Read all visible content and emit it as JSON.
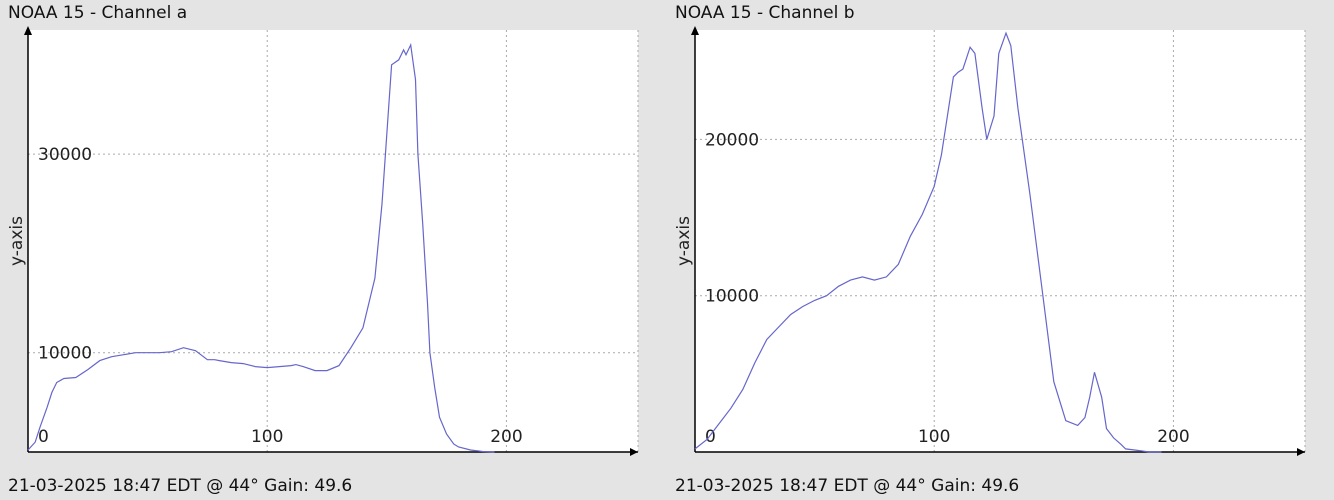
{
  "colors": {
    "background": "#e4e4e4",
    "plot_bg": "#ffffff",
    "line": "#6666cc",
    "grid": "#aaaaaa",
    "axis": "#000000"
  },
  "charts": [
    {
      "title": "NOAA 15 - Channel a",
      "footer": "21-03-2025 18:47 EDT @ 44° Gain: 49.6",
      "ylabel": "y-axis"
    },
    {
      "title": "NOAA 15 - Channel b",
      "footer": "21-03-2025 18:47 EDT @ 44° Gain: 49.6",
      "ylabel": "y-axis"
    }
  ],
  "chart_data": [
    {
      "type": "line",
      "title": "NOAA 15 - Channel a",
      "ylabel": "y-axis",
      "xlim": [
        0,
        255
      ],
      "ylim": [
        0,
        42500
      ],
      "xticks": [
        0,
        100,
        200
      ],
      "yticks": [
        10000,
        30000
      ],
      "grid": true,
      "series": [
        {
          "x": [
            0,
            3,
            5,
            8,
            10,
            12,
            15,
            20,
            25,
            30,
            35,
            40,
            45,
            50,
            55,
            60,
            65,
            70,
            75,
            78,
            80,
            85,
            90,
            95,
            100,
            105,
            110,
            112,
            115,
            120,
            125,
            130,
            135,
            140,
            145,
            148,
            150,
            152,
            155,
            157,
            158,
            160,
            162,
            163,
            165,
            167,
            168,
            170,
            172,
            175,
            178,
            180,
            185,
            190,
            195
          ],
          "y": [
            200,
            1000,
            2500,
            4500,
            6000,
            7000,
            7400,
            7500,
            8300,
            9200,
            9600,
            9800,
            10000,
            10000,
            10000,
            10100,
            10500,
            10200,
            9300,
            9300,
            9200,
            9000,
            8900,
            8600,
            8500,
            8600,
            8700,
            8800,
            8600,
            8200,
            8200,
            8700,
            10500,
            12500,
            17500,
            25000,
            32000,
            39000,
            39500,
            40500,
            40000,
            41000,
            37500,
            30000,
            23000,
            15000,
            10000,
            6500,
            3500,
            1800,
            800,
            500,
            200,
            50,
            0
          ]
        }
      ]
    },
    {
      "type": "line",
      "title": "NOAA 15 - Channel b",
      "ylabel": "y-axis",
      "xlim": [
        0,
        255
      ],
      "ylim": [
        0,
        27000
      ],
      "xticks": [
        0,
        100,
        200
      ],
      "yticks": [
        10000,
        20000
      ],
      "grid": true,
      "series": [
        {
          "x": [
            0,
            5,
            10,
            15,
            20,
            25,
            30,
            35,
            40,
            45,
            50,
            55,
            60,
            65,
            70,
            75,
            80,
            85,
            90,
            95,
            100,
            103,
            105,
            108,
            110,
            112,
            115,
            117,
            120,
            122,
            125,
            127,
            130,
            132,
            135,
            140,
            145,
            150,
            155,
            160,
            163,
            165,
            167,
            170,
            172,
            175,
            178,
            180,
            185,
            190,
            195
          ],
          "y": [
            200,
            800,
            1800,
            2800,
            4000,
            5700,
            7200,
            8000,
            8800,
            9300,
            9700,
            10000,
            10600,
            11000,
            11200,
            11000,
            11200,
            12000,
            13800,
            15200,
            17000,
            19000,
            21000,
            24000,
            24300,
            24500,
            25900,
            25500,
            22000,
            20000,
            21500,
            25500,
            26800,
            26000,
            22000,
            16500,
            10500,
            4500,
            2000,
            1700,
            2200,
            3500,
            5100,
            3500,
            1500,
            900,
            500,
            200,
            100,
            0,
            0
          ]
        }
      ]
    }
  ]
}
